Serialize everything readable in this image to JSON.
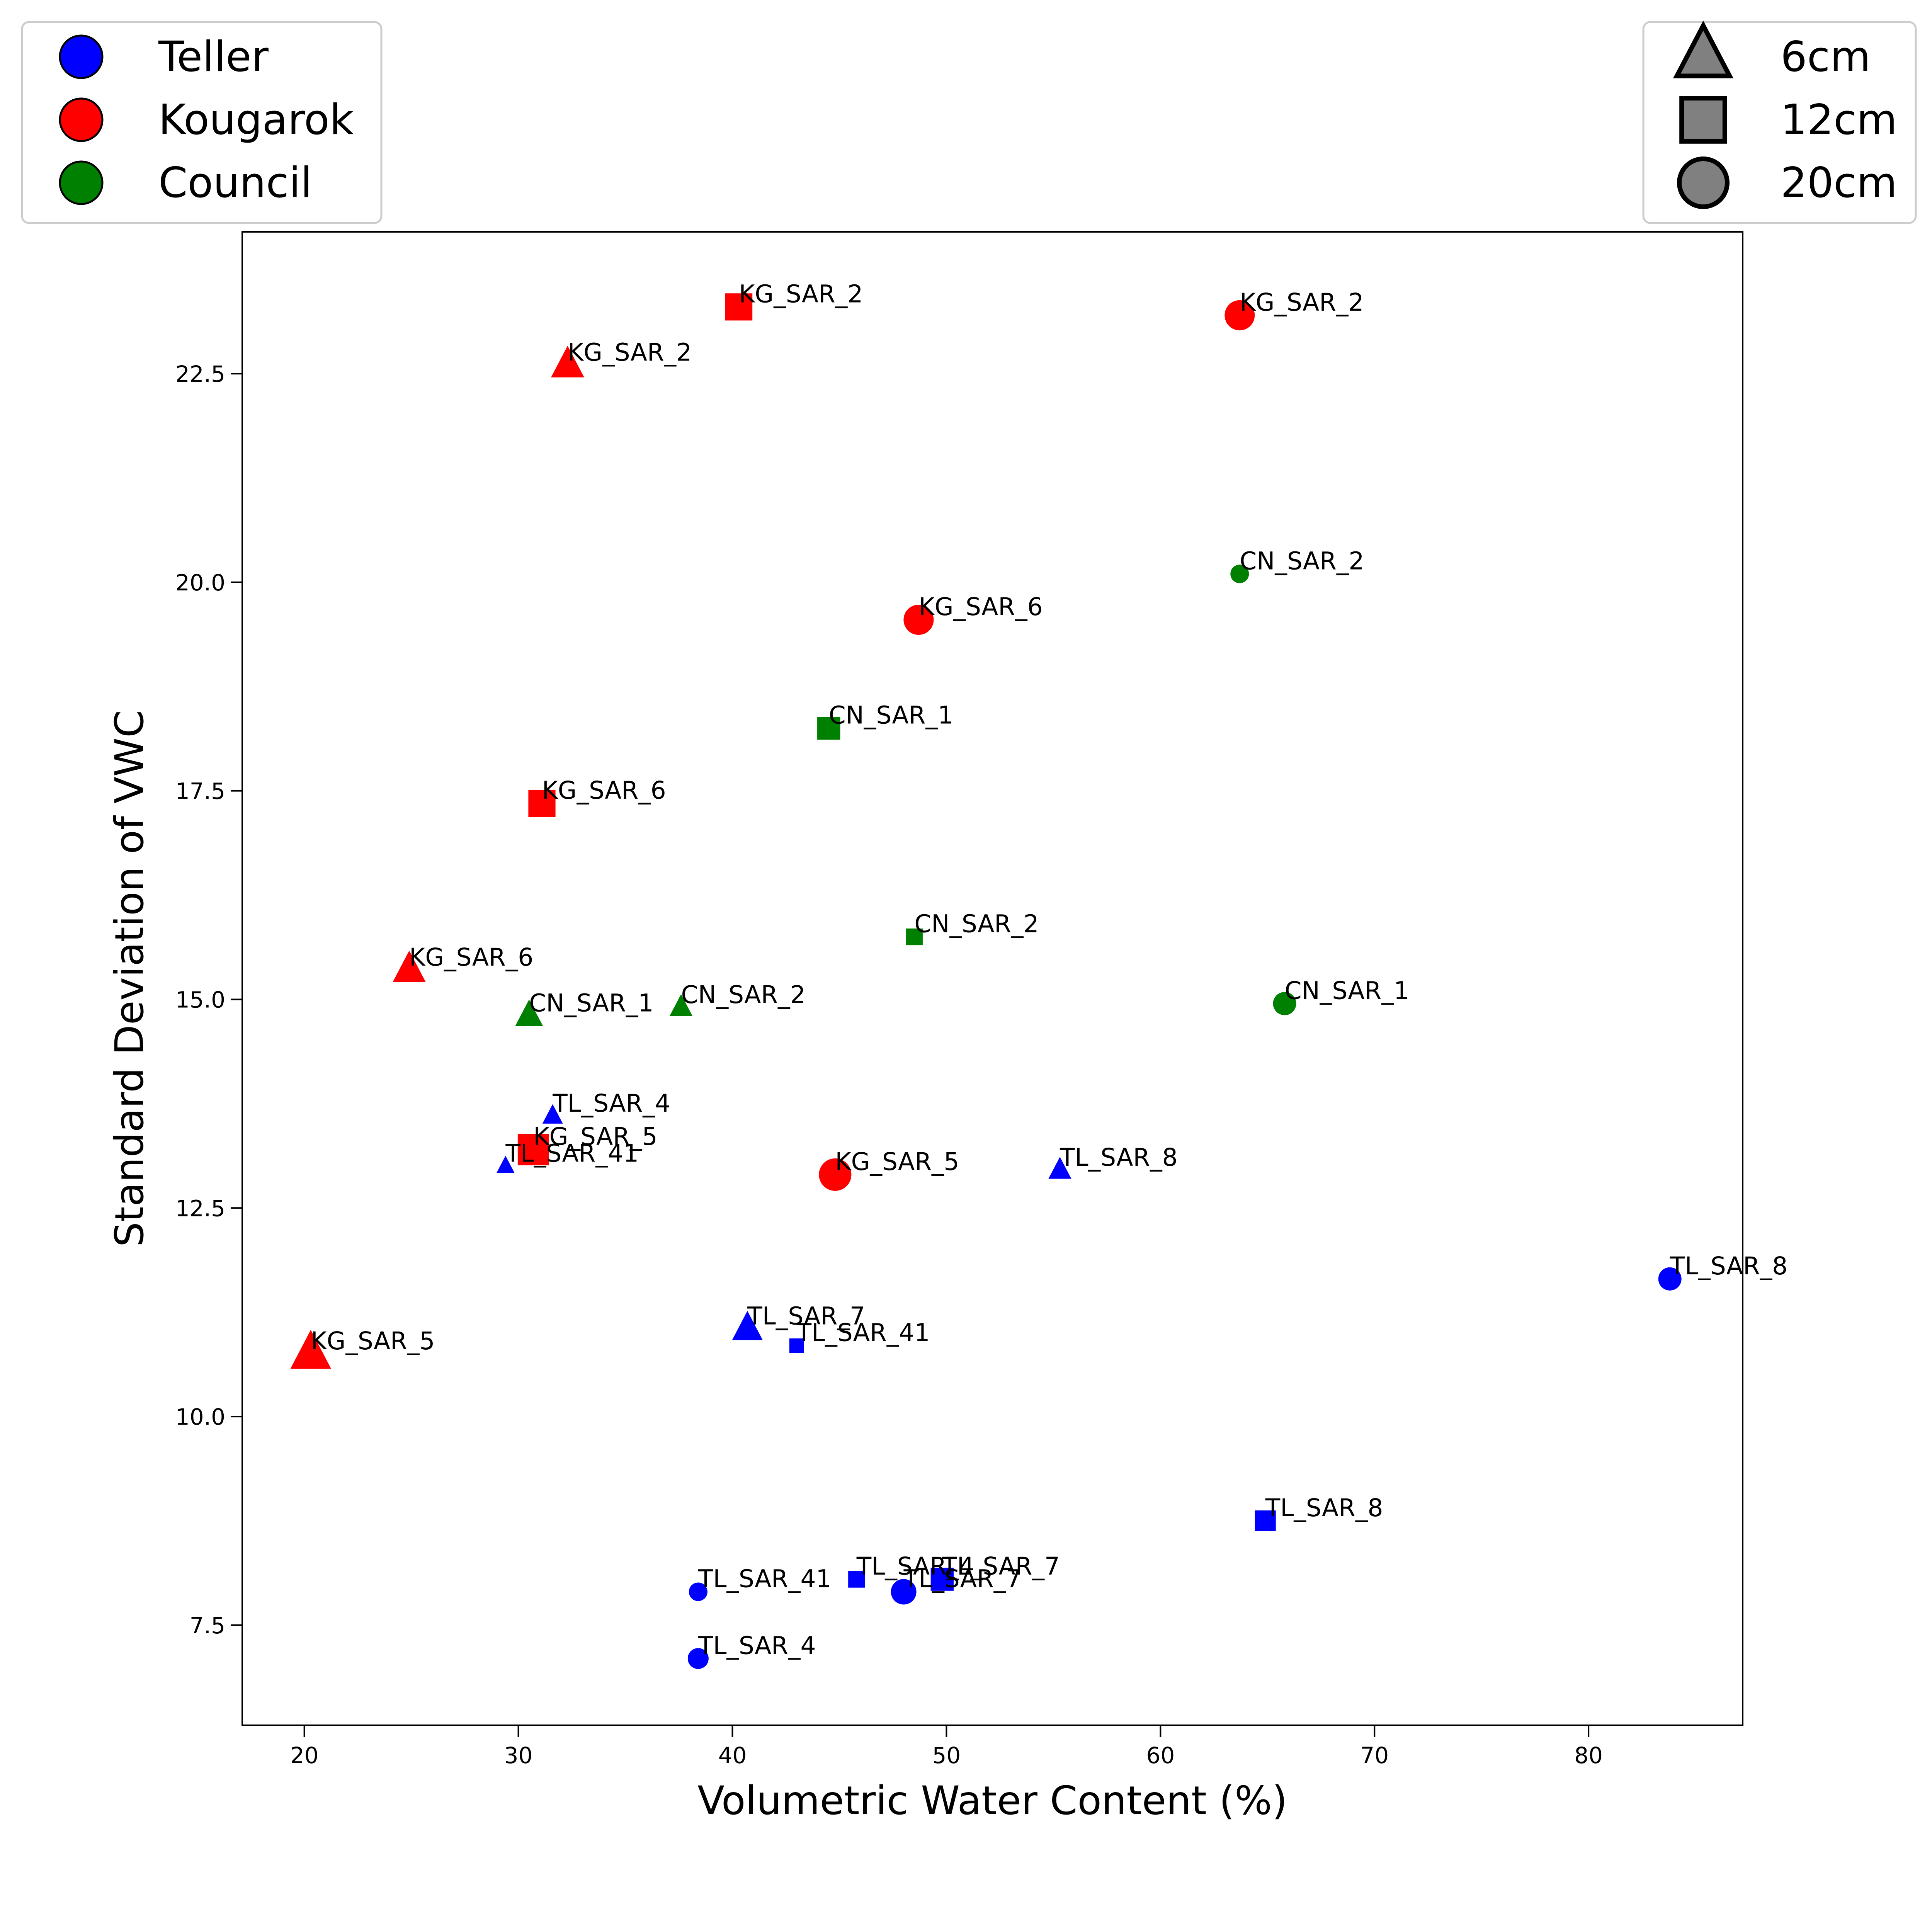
{
  "legend_site": {
    "placement": "top-left",
    "entries": [
      {
        "label": "Teller",
        "color": "#0000ff"
      },
      {
        "label": "Kougarok",
        "color": "#ff0000"
      },
      {
        "label": "Council",
        "color": "#008000"
      }
    ]
  },
  "legend_depth": {
    "placement": "top-right",
    "entries": [
      {
        "label": "6cm",
        "marker": "triangle"
      },
      {
        "label": "12cm",
        "marker": "square"
      },
      {
        "label": "20cm",
        "marker": "circle"
      }
    ],
    "marker_color": "#808080"
  },
  "chart_data": {
    "type": "scatter",
    "title": "",
    "xlabel": "Volumetric Water Content (%)",
    "ylabel": "Standard Deviation of VWC",
    "xlim": [
      17.1,
      87.2
    ],
    "ylim": [
      6.3,
      24.2
    ],
    "xticks": [
      "20",
      "30",
      "40",
      "50",
      "60",
      "70",
      "80"
    ],
    "xtick_values": [
      20,
      30,
      40,
      50,
      60,
      70,
      80
    ],
    "yticks": [
      "7.5",
      "10.0",
      "12.5",
      "15.0",
      "17.5",
      "20.0",
      "22.5"
    ],
    "ytick_values": [
      7.5,
      10.0,
      12.5,
      15.0,
      17.5,
      20.0,
      22.5
    ],
    "grid": false,
    "colors": {
      "Teller": "#0000ff",
      "Kougarok": "#ff0000",
      "Council": "#008000"
    },
    "points": [
      {
        "label": "KG_SAR_2",
        "site": "Kougarok",
        "depth": "6cm",
        "x": 32.3,
        "y": 22.6,
        "size": 1.3
      },
      {
        "label": "KG_SAR_6",
        "site": "Kougarok",
        "depth": "6cm",
        "x": 24.9,
        "y": 15.35,
        "size": 1.3
      },
      {
        "label": "KG_SAR_5",
        "site": "Kougarok",
        "depth": "6cm",
        "x": 20.3,
        "y": 10.75,
        "size": 1.6
      },
      {
        "label": "KG_SAR_2",
        "site": "Kougarok",
        "depth": "12cm",
        "x": 40.3,
        "y": 23.3,
        "size": 1.3
      },
      {
        "label": "KG_SAR_6",
        "site": "Kougarok",
        "depth": "12cm",
        "x": 31.1,
        "y": 17.35,
        "size": 1.3
      },
      {
        "label": "KG_SAR_5",
        "site": "Kougarok",
        "depth": "12cm",
        "x": 30.7,
        "y": 13.2,
        "size": 1.5
      },
      {
        "label": "KG_SAR_2",
        "site": "Kougarok",
        "depth": "20cm",
        "x": 63.7,
        "y": 23.2,
        "size": 1.3
      },
      {
        "label": "KG_SAR_6",
        "site": "Kougarok",
        "depth": "20cm",
        "x": 48.7,
        "y": 19.55,
        "size": 1.3
      },
      {
        "label": "KG_SAR_5",
        "site": "Kougarok",
        "depth": "20cm",
        "x": 44.8,
        "y": 12.9,
        "size": 1.4
      },
      {
        "label": "CN_SAR_1",
        "site": "Council",
        "depth": "6cm",
        "x": 30.5,
        "y": 14.8,
        "size": 1.1
      },
      {
        "label": "CN_SAR_2",
        "site": "Council",
        "depth": "6cm",
        "x": 37.6,
        "y": 14.9,
        "size": 0.9
      },
      {
        "label": "CN_SAR_1",
        "site": "Council",
        "depth": "12cm",
        "x": 44.5,
        "y": 18.25,
        "size": 1.1
      },
      {
        "label": "CN_SAR_2",
        "site": "Council",
        "depth": "12cm",
        "x": 48.5,
        "y": 15.75,
        "size": 0.8
      },
      {
        "label": "CN_SAR_2",
        "site": "Council",
        "depth": "20cm",
        "x": 63.7,
        "y": 20.1,
        "size": 0.8
      },
      {
        "label": "CN_SAR_1",
        "site": "Council",
        "depth": "20cm",
        "x": 65.8,
        "y": 14.95,
        "size": 1.0
      },
      {
        "label": "TL_SAR_4",
        "site": "Teller",
        "depth": "6cm",
        "x": 31.6,
        "y": 13.6,
        "size": 0.8
      },
      {
        "label": "TL_SAR_41",
        "site": "Teller",
        "depth": "6cm",
        "x": 29.4,
        "y": 13.0,
        "size": 0.7
      },
      {
        "label": "TL_SAR_8",
        "site": "Teller",
        "depth": "6cm",
        "x": 55.3,
        "y": 12.95,
        "size": 0.9
      },
      {
        "label": "TL_SAR_7",
        "site": "Teller",
        "depth": "6cm",
        "x": 40.7,
        "y": 11.05,
        "size": 1.2
      },
      {
        "label": "TL_SAR_41",
        "site": "Teller",
        "depth": "12cm",
        "x": 43.0,
        "y": 10.85,
        "size": 0.7
      },
      {
        "label": "TL_SAR_8",
        "site": "Teller",
        "depth": "12cm",
        "x": 64.9,
        "y": 8.75,
        "size": 1.0
      },
      {
        "label": "TL_SAR_4",
        "site": "Teller",
        "depth": "12cm",
        "x": 45.8,
        "y": 8.05,
        "size": 0.8
      },
      {
        "label": "TL_SAR_7",
        "site": "Teller",
        "depth": "12cm",
        "x": 49.8,
        "y": 8.05,
        "size": 1.1
      },
      {
        "label": "TL_SAR_8",
        "site": "Teller",
        "depth": "20cm",
        "x": 83.8,
        "y": 11.65,
        "size": 1.0
      },
      {
        "label": "TL_SAR_41",
        "site": "Teller",
        "depth": "20cm",
        "x": 38.4,
        "y": 7.9,
        "size": 0.8
      },
      {
        "label": "TL_SAR_7",
        "site": "Teller",
        "depth": "20cm",
        "x": 48.0,
        "y": 7.9,
        "size": 1.1
      },
      {
        "label": "TL_SAR_4",
        "site": "Teller",
        "depth": "20cm",
        "x": 38.4,
        "y": 7.1,
        "size": 0.9
      }
    ]
  }
}
